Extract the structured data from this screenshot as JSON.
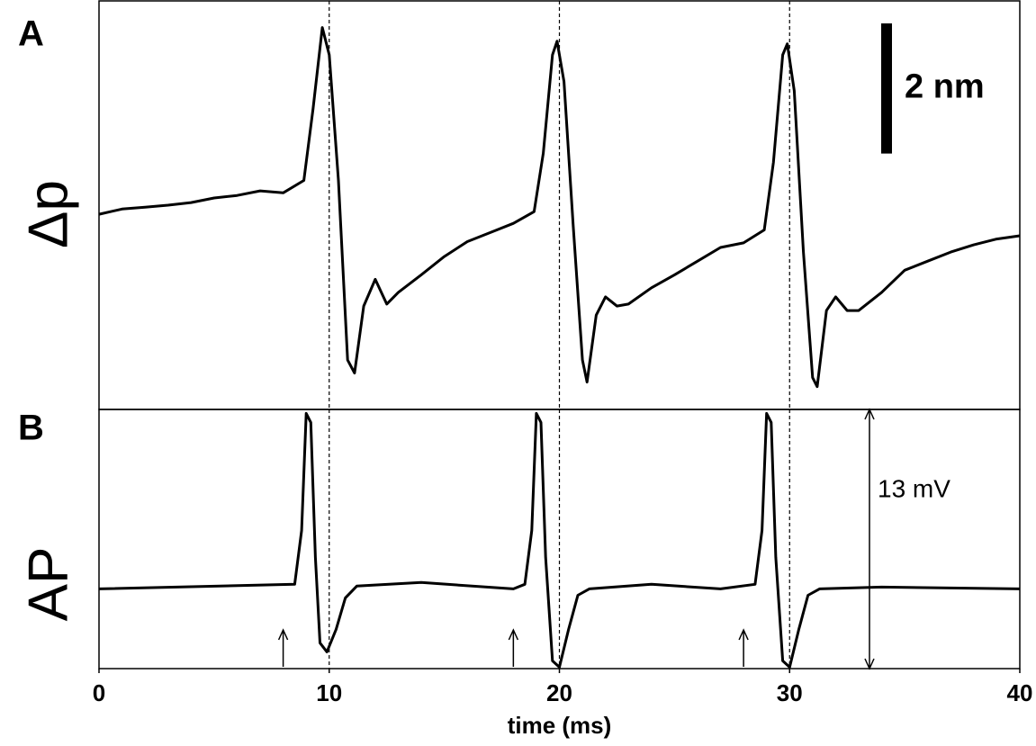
{
  "chart_data": [
    {
      "type": "line",
      "panel_label": "A",
      "ylabel": "Δp",
      "xlim": [
        0,
        40
      ],
      "ylim": [
        -3.08,
        3.2
      ],
      "scale_bar": {
        "value": 2,
        "label": "2 nm"
      },
      "reference_lines": [
        10,
        20,
        30
      ],
      "x": [
        0,
        1,
        2,
        3,
        4,
        5,
        6,
        7,
        8,
        8.9,
        9.3,
        9.7,
        10.0,
        10.4,
        10.8,
        11.1,
        11.5,
        12,
        12.5,
        13,
        14,
        15,
        16,
        17,
        18,
        18.9,
        19.3,
        19.7,
        19.9,
        20.2,
        20.6,
        21.0,
        21.2,
        21.6,
        22,
        22.5,
        23,
        24,
        25,
        26,
        27,
        28,
        28.9,
        29.3,
        29.7,
        29.9,
        30.2,
        30.6,
        31.0,
        31.2,
        31.6,
        32,
        32.5,
        33,
        34,
        35,
        36,
        37,
        38,
        39,
        40
      ],
      "series": [
        {
          "color": "#000000",
          "values": [
            -0.08,
            0,
            0.03,
            0.06,
            0.1,
            0.17,
            0.21,
            0.28,
            0.25,
            0.44,
            1.54,
            2.79,
            2.37,
            0.44,
            -2.32,
            -2.52,
            -1.49,
            -1.08,
            -1.46,
            -1.28,
            -1.01,
            -0.73,
            -0.5,
            -0.36,
            -0.22,
            -0.04,
            0.86,
            2.37,
            2.58,
            1.96,
            -0.25,
            -2.32,
            -2.66,
            -1.63,
            -1.35,
            -1.49,
            -1.46,
            -1.21,
            -1.01,
            -0.8,
            -0.59,
            -0.52,
            -0.32,
            0.72,
            2.37,
            2.54,
            1.82,
            -0.66,
            -2.59,
            -2.73,
            -1.56,
            -1.35,
            -1.56,
            -1.56,
            -1.28,
            -0.94,
            -0.8,
            -0.66,
            -0.55,
            -0.46,
            -0.41
          ]
        }
      ]
    },
    {
      "type": "line",
      "panel_label": "B",
      "ylabel": "AP",
      "xlabel": "time (ms)",
      "xlim": [
        0,
        40
      ],
      "xticks": [
        0,
        10,
        20,
        30,
        40
      ],
      "ylim": [
        -4,
        9
      ],
      "scale_bar": {
        "value": 13,
        "label": "13 mV"
      },
      "reference_lines": [
        10,
        20,
        30
      ],
      "stimulus_markers": [
        8,
        18,
        28
      ],
      "x": [
        0,
        8.5,
        8.8,
        9.0,
        9.2,
        9.4,
        9.6,
        9.9,
        10.3,
        10.7,
        11.2,
        14,
        18,
        18.5,
        18.8,
        19.0,
        19.2,
        19.4,
        19.7,
        20.0,
        20.4,
        20.8,
        21.3,
        24,
        27,
        28.5,
        28.8,
        29.0,
        29.2,
        29.4,
        29.7,
        30.0,
        30.4,
        30.8,
        31.3,
        34,
        40
      ],
      "series": [
        {
          "color": "#000000",
          "values": [
            0,
            0.23,
            2.93,
            8.8,
            8.35,
            1.58,
            -2.71,
            -3.16,
            -2.03,
            -0.45,
            0.14,
            0.32,
            0,
            0.23,
            2.93,
            8.8,
            8.35,
            1.58,
            -3.61,
            -3.93,
            -2.03,
            -0.32,
            0,
            0.23,
            0,
            0.23,
            2.93,
            8.8,
            8.35,
            1.58,
            -3.61,
            -3.93,
            -2.03,
            -0.32,
            0,
            0.09,
            0
          ]
        }
      ]
    }
  ]
}
